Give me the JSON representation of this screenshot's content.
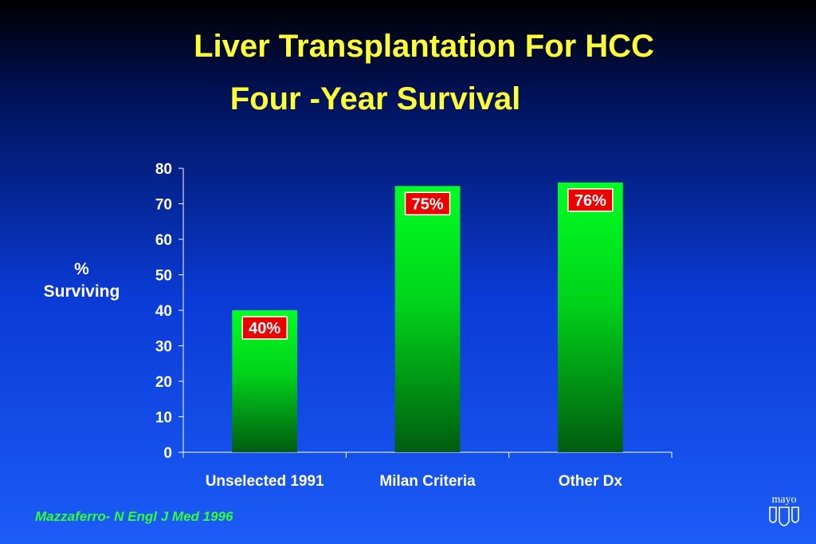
{
  "title": "Liver Transplantation For HCC",
  "subtitle": "Four -Year Survival",
  "ylabel_line1": "%",
  "ylabel_line2": "Surviving",
  "footer": "Mazzaferro- N Engl J Med 1996",
  "logo_text": "mayo",
  "colors": {
    "title": "#ffff33",
    "bar_top": "#00ff22",
    "bar_bottom": "#005c10",
    "label_bg": "#ee0000",
    "footer": "#33ff33"
  },
  "chart_data": {
    "type": "bar",
    "title": "Liver Transplantation For HCC",
    "subtitle": "Four -Year Survival",
    "ylabel": "% Surviving",
    "xlabel": "",
    "categories": [
      "Unselected 1991",
      "Milan Criteria",
      "Other Dx"
    ],
    "values": [
      40,
      75,
      76
    ],
    "data_labels": [
      "40%",
      "75%",
      "76%"
    ],
    "ylim": [
      0,
      80
    ],
    "yticks": [
      0,
      10,
      20,
      30,
      40,
      50,
      60,
      70,
      80
    ],
    "grid": false,
    "legend": "none"
  }
}
